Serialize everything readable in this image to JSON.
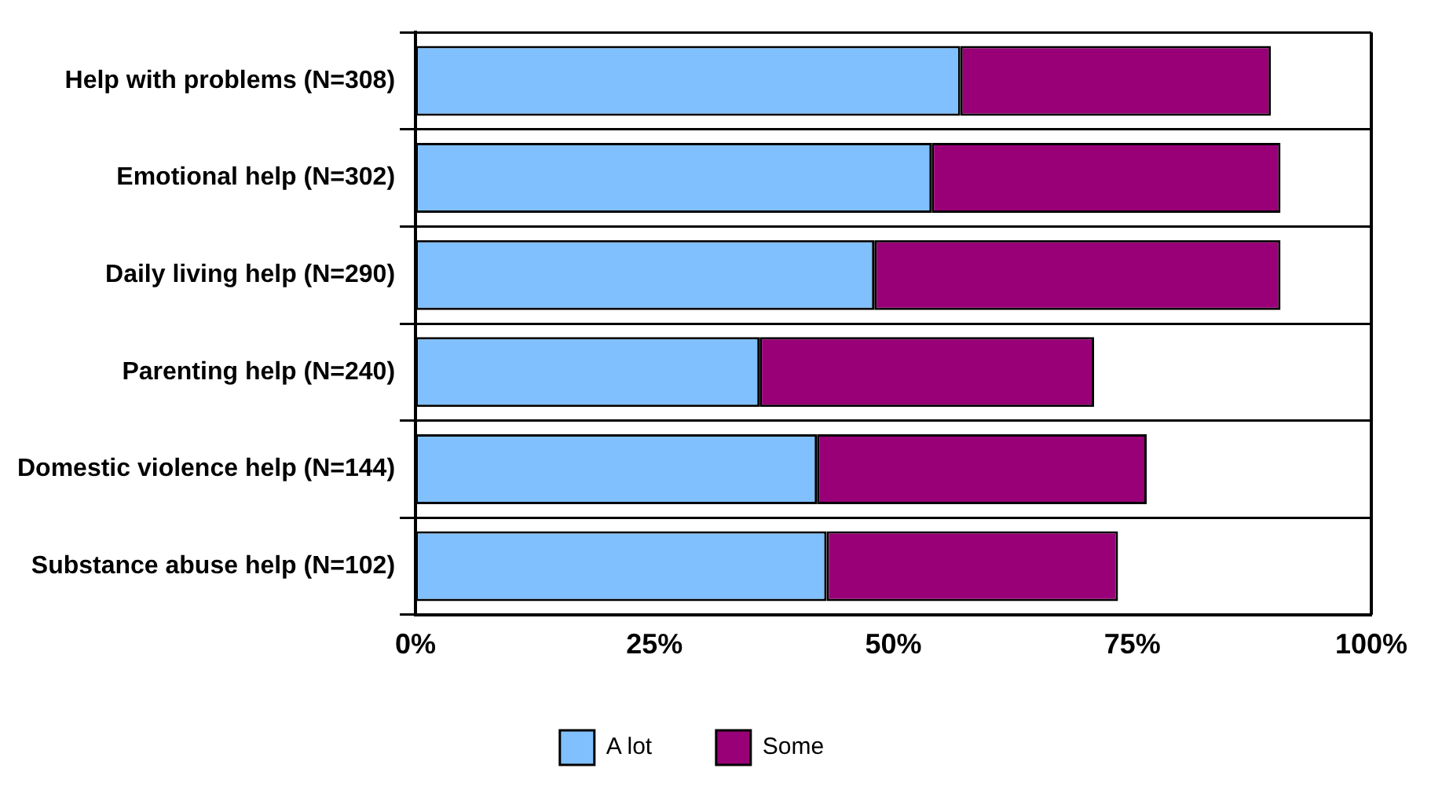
{
  "chart_data": {
    "type": "bar",
    "orientation": "horizontal",
    "stacked": true,
    "categories": [
      "Help with problems (N=308)",
      "Emotional help (N=302)",
      "Daily living help (N=290)",
      "Parenting help (N=240)",
      "Domestic violence help (N=144)",
      "Substance abuse help (N=102)"
    ],
    "series": [
      {
        "name": "A lot",
        "color": "#80c0ff",
        "values": [
          57,
          54,
          48,
          36,
          42,
          43
        ]
      },
      {
        "name": "Some",
        "color": "#990077",
        "values": [
          32.5,
          36.5,
          42.5,
          35,
          34.5,
          30.5
        ]
      }
    ],
    "xlim": [
      0,
      100
    ],
    "xticks": [
      {
        "value": 0,
        "label": "0%"
      },
      {
        "value": 25,
        "label": "25%"
      },
      {
        "value": 50,
        "label": "50%"
      },
      {
        "value": 75,
        "label": "75%"
      },
      {
        "value": 100,
        "label": "100%"
      }
    ],
    "grid": "y",
    "legend": "bottom"
  }
}
